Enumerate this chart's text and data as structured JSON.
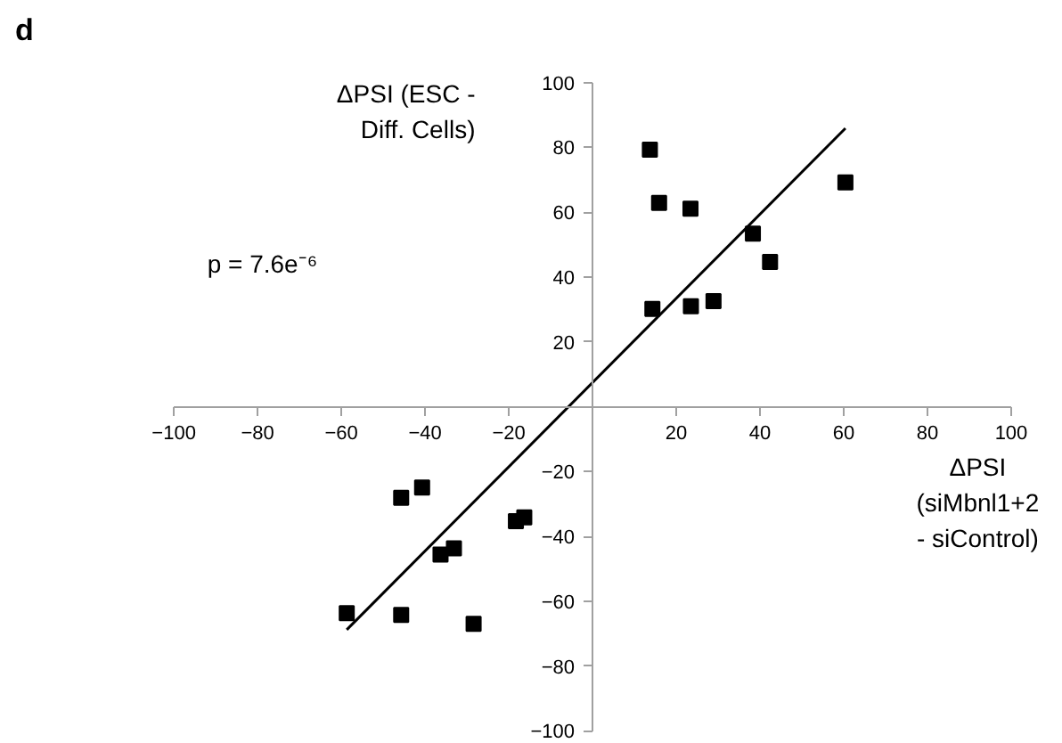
{
  "chart_data": {
    "type": "scatter",
    "title": "d",
    "xlabel": "ΔPSI\n(siMbnl1+2\n- siControl)",
    "ylabel": "ΔPSI (ESC -\nDiff. Cells)",
    "annotations": [
      "p = 7.6e⁻⁶"
    ],
    "grid": false,
    "xlim": [
      -100,
      100
    ],
    "ylim": [
      -100,
      100
    ],
    "xticks": [
      -100,
      -80,
      -60,
      -40,
      -20,
      20,
      40,
      60,
      80,
      100
    ],
    "yticks": [
      -100,
      -80,
      -60,
      -40,
      -20,
      20,
      40,
      60,
      80,
      100
    ],
    "series": [
      {
        "color": "#000000",
        "marker": "square",
        "x": [
          13.7,
          15.9,
          23.4,
          38.3,
          42.4,
          60.4,
          14.3,
          23.5,
          28.9,
          -58.7,
          -45.7,
          -45.7,
          -40.7,
          -36.3,
          -33.1,
          -28.4,
          -18.3,
          -16.3
        ],
        "values": [
          79.3,
          62.9,
          61.1,
          53.4,
          44.7,
          69.2,
          30.2,
          31.0,
          32.6,
          -63.7,
          -64.2,
          -28.1,
          -24.9,
          -45.6,
          -43.7,
          -67.0,
          -35.3,
          -34.1
        ]
      },
      {
        "type": "line",
        "marker": "none",
        "color": "#000000",
        "x": [
          -58.7,
          60.4
        ],
        "values": [
          -68.8,
          85.9
        ]
      }
    ]
  }
}
